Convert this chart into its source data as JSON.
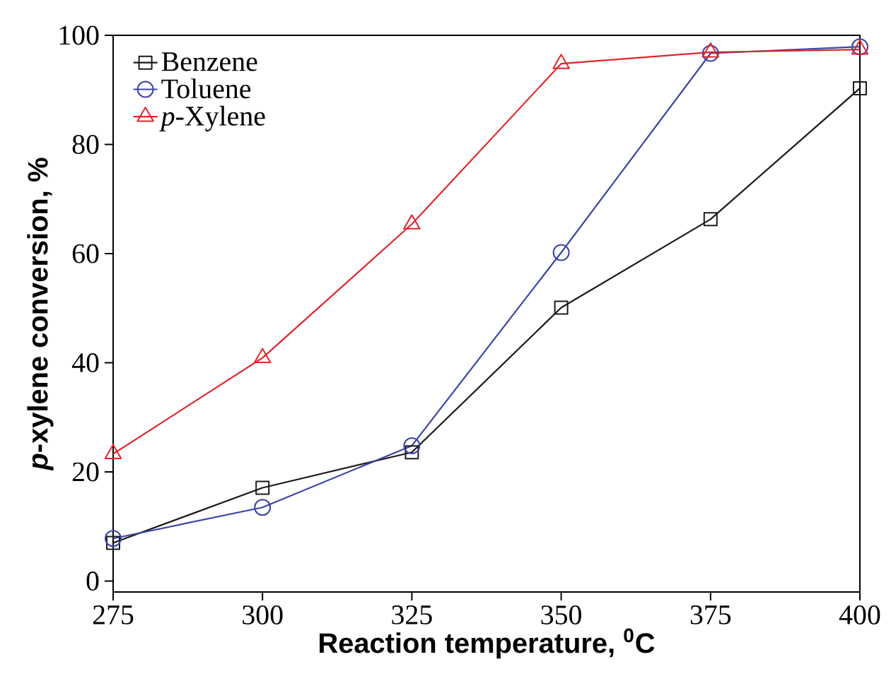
{
  "chart_data": {
    "type": "line",
    "xlabel": "Reaction temperature, $^{0}$C",
    "ylabel": "*p*-xylene conversion, %",
    "x": [
      275,
      300,
      325,
      350,
      375,
      400
    ],
    "series": [
      {
        "name": "Benzene",
        "color": "#1a1a1a",
        "marker": "square",
        "values": [
          7,
          17.1,
          23.6,
          50.1,
          66.3,
          90.3
        ]
      },
      {
        "name": "Toluene",
        "color": "#3b45a5",
        "marker": "circle",
        "values": [
          7.8,
          13.5,
          24.8,
          60.2,
          96.7,
          97.9
        ]
      },
      {
        "name": "*p*-Xylene",
        "color": "#e0262b",
        "marker": "triangle",
        "values": [
          23.3,
          40.9,
          65.4,
          94.8,
          96.9,
          97.4
        ]
      }
    ],
    "xlim": [
      275,
      400
    ],
    "xticks": [
      275,
      300,
      325,
      350,
      375,
      400
    ],
    "ylim": [
      -2,
      100
    ],
    "yticks": [
      0,
      20,
      40,
      60,
      80,
      100
    ],
    "grid": false,
    "legend": "top left",
    "line_style": "solid"
  }
}
